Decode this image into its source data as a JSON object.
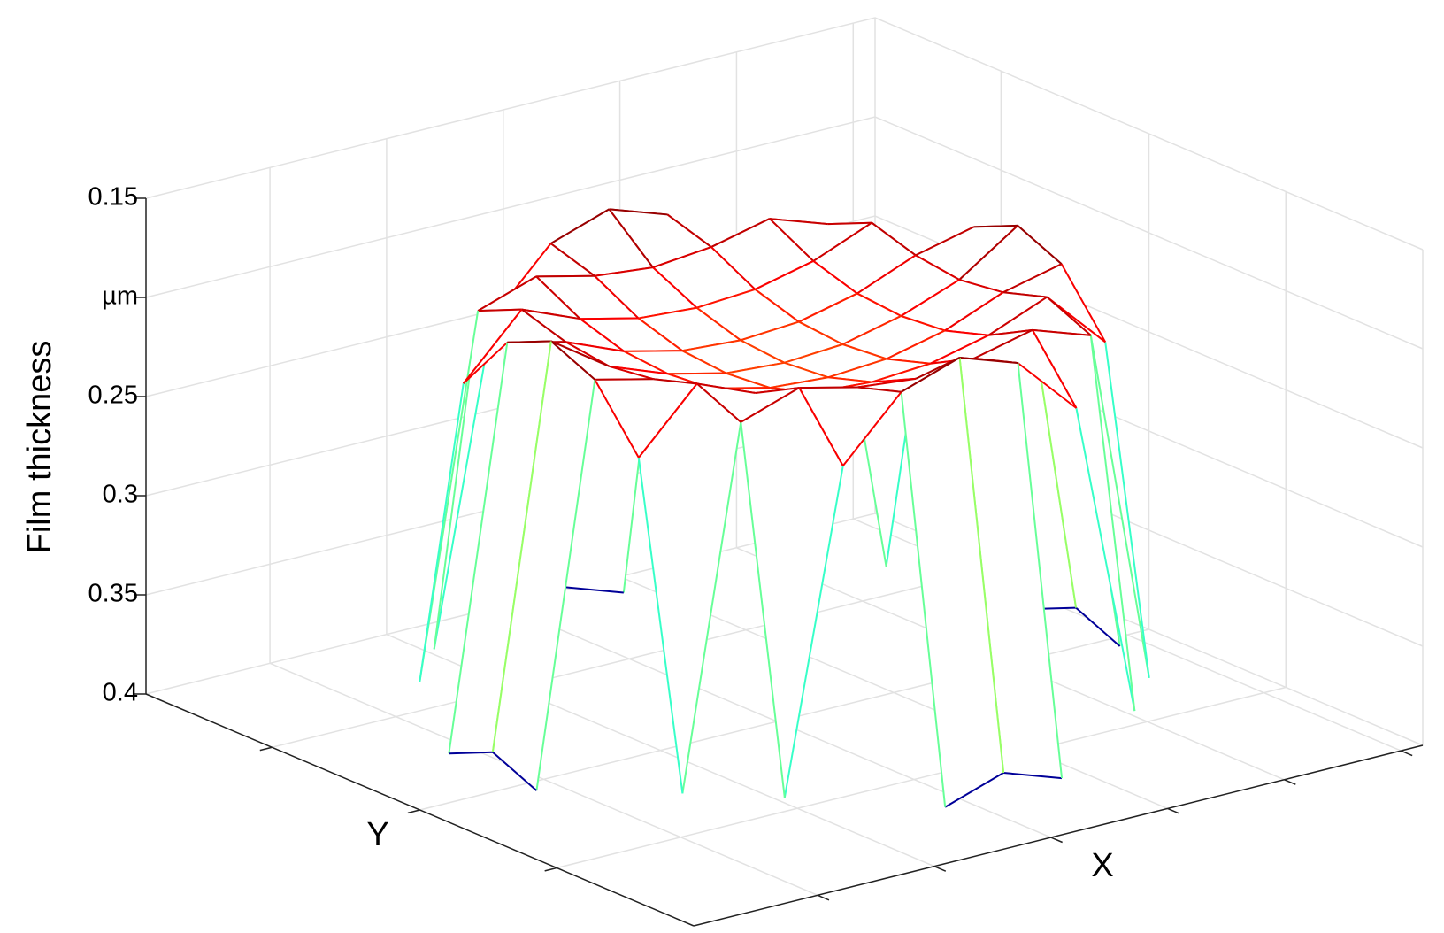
{
  "chart_data": {
    "type": "surface",
    "z_label": "Film thickness",
    "x_label": "X",
    "y_label": "Y",
    "colormap": "jet",
    "grid": true,
    "xlim": [
      -1.25,
      1.25
    ],
    "ylim": [
      -1.25,
      1.25
    ],
    "zlim": [
      0.4,
      0.15
    ],
    "zticks": [
      0.15,
      {
        "value": 0.2,
        "label": "µm"
      },
      0.25,
      0.3,
      0.35,
      0.4
    ],
    "x": [
      -1,
      -0.8,
      -0.6,
      -0.4,
      -0.2,
      0,
      0.2,
      0.4,
      0.6,
      0.8,
      1
    ],
    "y": [
      -1,
      -0.8,
      -0.6,
      -0.4,
      -0.2,
      0,
      0.2,
      0.4,
      0.6,
      0.8,
      1
    ],
    "z": [
      [
        null,
        null,
        null,
        null,
        0.39,
        0.38,
        0.39,
        null,
        null,
        null,
        null
      ],
      [
        null,
        null,
        0.38,
        0.22,
        0.19,
        0.18,
        0.19,
        0.22,
        0.38,
        null,
        null
      ],
      [
        null,
        0.38,
        0.2,
        0.19,
        0.197,
        0.2,
        0.197,
        0.19,
        0.2,
        0.38,
        null
      ],
      [
        null,
        0.22,
        0.19,
        0.202,
        0.209,
        0.211,
        0.209,
        0.202,
        0.19,
        0.22,
        null
      ],
      [
        0.39,
        0.19,
        0.197,
        0.209,
        0.216,
        0.218,
        0.216,
        0.209,
        0.197,
        0.19,
        0.39
      ],
      [
        0.38,
        0.18,
        0.2,
        0.211,
        0.218,
        0.22,
        0.218,
        0.211,
        0.2,
        0.18,
        0.38
      ],
      [
        0.39,
        0.19,
        0.197,
        0.209,
        0.216,
        0.218,
        0.216,
        0.209,
        0.197,
        0.19,
        0.39
      ],
      [
        null,
        0.22,
        0.19,
        0.202,
        0.209,
        0.211,
        0.209,
        0.202,
        0.19,
        0.22,
        null
      ],
      [
        null,
        0.38,
        0.2,
        0.19,
        0.197,
        0.2,
        0.197,
        0.19,
        0.2,
        0.38,
        null
      ],
      [
        null,
        null,
        0.38,
        0.22,
        0.19,
        0.18,
        0.19,
        0.22,
        0.38,
        null,
        null
      ],
      [
        null,
        null,
        null,
        null,
        0.39,
        0.38,
        0.39,
        null,
        null,
        null,
        null
      ]
    ]
  }
}
